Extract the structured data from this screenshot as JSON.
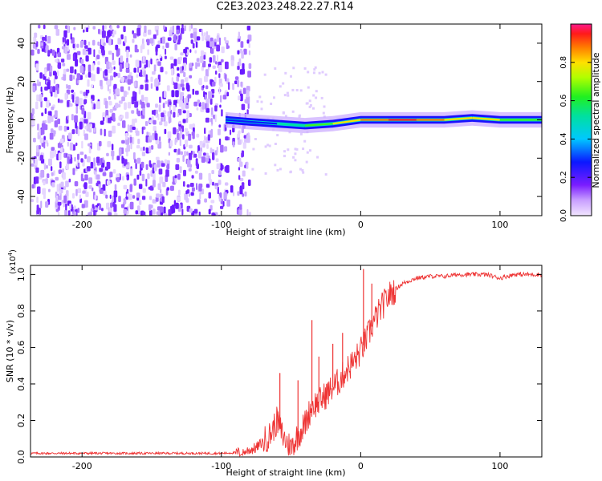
{
  "title": "C2E3.2023.248.22.27.R14",
  "chart_data": [
    {
      "type": "heatmap",
      "xlabel": "Height of straight line (km)",
      "ylabel": "Frequency (Hz)",
      "xlim": [
        -237,
        130
      ],
      "ylim": [
        -50,
        50
      ],
      "xticks": [
        -200,
        -100,
        0,
        100
      ],
      "yticks": [
        -40,
        -20,
        0,
        20,
        40
      ],
      "colorbar": {
        "label": "Normalized spectral amplitude",
        "range": [
          0.0,
          1.0
        ],
        "ticks": [
          0.0,
          0.2,
          0.4,
          0.6,
          0.8
        ]
      },
      "noise_region_x": [
        -237,
        -80
      ],
      "signal_ridge": {
        "x": [
          -97,
          -80,
          -60,
          -40,
          -20,
          0,
          20,
          40,
          60,
          80,
          100,
          130
        ],
        "frequency": [
          0,
          -1,
          -2,
          -3,
          -2,
          0,
          0,
          0,
          0,
          1,
          0,
          0
        ],
        "amplitude": [
          0.3,
          0.35,
          0.55,
          0.65,
          0.8,
          0.95,
          1.0,
          1.0,
          0.95,
          0.75,
          0.85,
          0.6
        ]
      }
    },
    {
      "type": "line",
      "xlabel": "Height of straight line (km)",
      "ylabel": "SNR (10 * v/v)",
      "multiplier": "(x10",
      "multiplier_exp": "4",
      "multiplier_close": ")",
      "xlim": [
        -237,
        130
      ],
      "ylim": [
        0,
        1.05
      ],
      "xticks": [
        -200,
        -100,
        0,
        100
      ],
      "yticks": [
        "0.0",
        "0.2",
        "0.4",
        "0.6",
        "0.8",
        "1.0"
      ],
      "series": [
        {
          "color": "#ee3333",
          "x": [
            -237,
            -200,
            -150,
            -100,
            -85,
            -75,
            -65,
            -60,
            -55,
            -50,
            -45,
            -40,
            -35,
            -30,
            -25,
            -20,
            -15,
            -10,
            -5,
            0,
            5,
            10,
            15,
            20,
            25,
            30,
            40,
            50,
            60,
            70,
            80,
            90,
            100,
            110,
            120,
            130
          ],
          "y": [
            0.02,
            0.02,
            0.02,
            0.02,
            0.025,
            0.05,
            0.12,
            0.2,
            0.1,
            0.05,
            0.12,
            0.18,
            0.28,
            0.3,
            0.34,
            0.38,
            0.42,
            0.48,
            0.52,
            0.58,
            0.66,
            0.75,
            0.82,
            0.88,
            0.92,
            0.95,
            0.98,
            0.99,
            0.99,
            1.0,
            1.0,
            1.0,
            0.98,
            1.0,
            1.0,
            1.0
          ]
        }
      ],
      "spikes": [
        {
          "x": -58,
          "y": 0.46
        },
        {
          "x": -45,
          "y": 0.42
        },
        {
          "x": -35,
          "y": 0.75
        },
        {
          "x": -30,
          "y": 0.55
        },
        {
          "x": -20,
          "y": 0.62
        },
        {
          "x": -13,
          "y": 0.68
        },
        {
          "x": 2,
          "y": 1.03
        },
        {
          "x": 8,
          "y": 0.95
        }
      ]
    }
  ]
}
